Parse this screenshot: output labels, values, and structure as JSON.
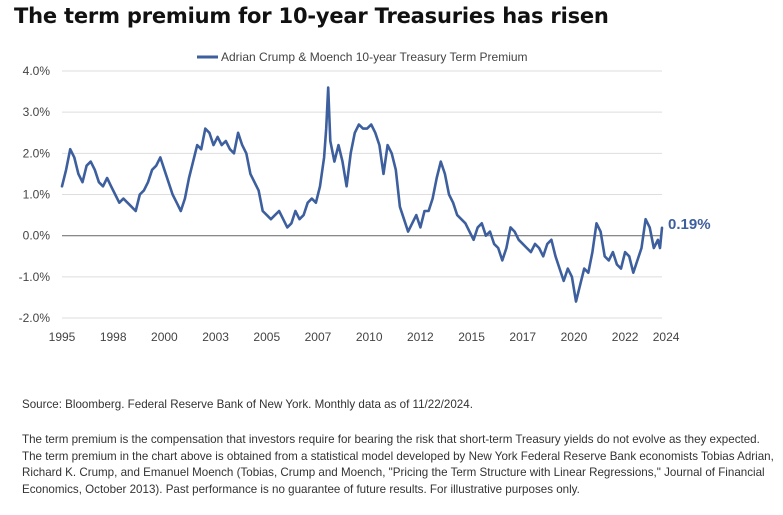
{
  "title": "The term premium for 10-year Treasuries has risen",
  "source": "Source: Bloomberg. Federal Reserve Bank of New York. Monthly data as of 11/22/2024.",
  "note": "The term premium is the compensation that investors require for bearing the risk that short-term Treasury yields do not evolve as they expected. The term premium in the chart above is obtained from a statistical model developed by New York Federal Reserve Bank economists Tobias Adrian, Richard K. Crump, and Emanuel Moench (Tobias, Crump and Moench, \"Pricing the Term Structure with Linear Regressions,\" Journal of Financial Economics, October 2013). Past performance is no guarantee of future results. For illustrative purposes only.",
  "chart_data": {
    "type": "line",
    "title": "The term premium for 10-year Treasuries has risen",
    "xlabel": "",
    "ylabel": "",
    "xlim": [
      1995,
      2024.3
    ],
    "ylim": [
      -2.0,
      4.0
    ],
    "x_ticks": [
      "1995",
      "1998",
      "2000",
      "2003",
      "2005",
      "2007",
      "2010",
      "2012",
      "2015",
      "2017",
      "2020",
      "2022",
      "2024"
    ],
    "x_tick_values": [
      1995,
      1997.5,
      2000,
      2002.5,
      2005,
      2007.5,
      2010,
      2012.5,
      2015,
      2017.5,
      2020,
      2022.5,
      2024.5
    ],
    "y_ticks": [
      "4.0%",
      "3.0%",
      "2.0%",
      "1.0%",
      "0.0%",
      "-1.0%",
      "-2.0%"
    ],
    "y_tick_values": [
      4,
      3,
      2,
      1,
      0,
      -1,
      -2
    ],
    "grid": true,
    "legend_position": "top-center",
    "color": "#3d5f9e",
    "end_label": "0.19%",
    "series": [
      {
        "name": "Adrian Crump & Moench 10-year Treasury Term Premium",
        "points": [
          [
            1995.0,
            1.2
          ],
          [
            1995.2,
            1.6
          ],
          [
            1995.4,
            2.1
          ],
          [
            1995.6,
            1.9
          ],
          [
            1995.8,
            1.5
          ],
          [
            1996.0,
            1.3
          ],
          [
            1996.2,
            1.7
          ],
          [
            1996.4,
            1.8
          ],
          [
            1996.6,
            1.6
          ],
          [
            1996.8,
            1.3
          ],
          [
            1997.0,
            1.2
          ],
          [
            1997.2,
            1.4
          ],
          [
            1997.4,
            1.2
          ],
          [
            1997.6,
            1.0
          ],
          [
            1997.8,
            0.8
          ],
          [
            1998.0,
            0.9
          ],
          [
            1998.2,
            0.8
          ],
          [
            1998.4,
            0.7
          ],
          [
            1998.6,
            0.6
          ],
          [
            1998.8,
            1.0
          ],
          [
            1999.0,
            1.1
          ],
          [
            1999.2,
            1.3
          ],
          [
            1999.4,
            1.6
          ],
          [
            1999.6,
            1.7
          ],
          [
            1999.8,
            1.9
          ],
          [
            2000.0,
            1.6
          ],
          [
            2000.2,
            1.3
          ],
          [
            2000.4,
            1.0
          ],
          [
            2000.6,
            0.8
          ],
          [
            2000.8,
            0.6
          ],
          [
            2001.0,
            0.9
          ],
          [
            2001.2,
            1.4
          ],
          [
            2001.4,
            1.8
          ],
          [
            2001.6,
            2.2
          ],
          [
            2001.8,
            2.1
          ],
          [
            2002.0,
            2.6
          ],
          [
            2002.2,
            2.5
          ],
          [
            2002.4,
            2.2
          ],
          [
            2002.6,
            2.4
          ],
          [
            2002.8,
            2.2
          ],
          [
            2003.0,
            2.3
          ],
          [
            2003.2,
            2.1
          ],
          [
            2003.4,
            2.0
          ],
          [
            2003.6,
            2.5
          ],
          [
            2003.8,
            2.2
          ],
          [
            2004.0,
            2.0
          ],
          [
            2004.2,
            1.5
          ],
          [
            2004.4,
            1.3
          ],
          [
            2004.6,
            1.1
          ],
          [
            2004.8,
            0.6
          ],
          [
            2005.0,
            0.5
          ],
          [
            2005.2,
            0.4
          ],
          [
            2005.4,
            0.5
          ],
          [
            2005.6,
            0.6
          ],
          [
            2005.8,
            0.4
          ],
          [
            2006.0,
            0.2
          ],
          [
            2006.2,
            0.3
          ],
          [
            2006.4,
            0.6
          ],
          [
            2006.6,
            0.4
          ],
          [
            2006.8,
            0.5
          ],
          [
            2007.0,
            0.8
          ],
          [
            2007.2,
            0.9
          ],
          [
            2007.4,
            0.8
          ],
          [
            2007.6,
            1.2
          ],
          [
            2007.8,
            1.9
          ],
          [
            2007.9,
            2.6
          ],
          [
            2008.0,
            3.6
          ],
          [
            2008.1,
            2.3
          ],
          [
            2008.3,
            1.8
          ],
          [
            2008.5,
            2.2
          ],
          [
            2008.7,
            1.8
          ],
          [
            2008.9,
            1.2
          ],
          [
            2009.1,
            2.0
          ],
          [
            2009.3,
            2.5
          ],
          [
            2009.5,
            2.7
          ],
          [
            2009.7,
            2.6
          ],
          [
            2009.9,
            2.6
          ],
          [
            2010.1,
            2.7
          ],
          [
            2010.3,
            2.5
          ],
          [
            2010.5,
            2.2
          ],
          [
            2010.7,
            1.5
          ],
          [
            2010.9,
            2.2
          ],
          [
            2011.1,
            2.0
          ],
          [
            2011.3,
            1.6
          ],
          [
            2011.5,
            0.7
          ],
          [
            2011.7,
            0.4
          ],
          [
            2011.9,
            0.1
          ],
          [
            2012.1,
            0.3
          ],
          [
            2012.3,
            0.5
          ],
          [
            2012.5,
            0.2
          ],
          [
            2012.7,
            0.6
          ],
          [
            2012.9,
            0.6
          ],
          [
            2013.1,
            0.9
          ],
          [
            2013.3,
            1.4
          ],
          [
            2013.5,
            1.8
          ],
          [
            2013.7,
            1.5
          ],
          [
            2013.9,
            1.0
          ],
          [
            2014.1,
            0.8
          ],
          [
            2014.3,
            0.5
          ],
          [
            2014.5,
            0.4
          ],
          [
            2014.7,
            0.3
          ],
          [
            2014.9,
            0.1
          ],
          [
            2015.1,
            -0.1
          ],
          [
            2015.3,
            0.2
          ],
          [
            2015.5,
            0.3
          ],
          [
            2015.7,
            0.0
          ],
          [
            2015.9,
            0.1
          ],
          [
            2016.1,
            -0.2
          ],
          [
            2016.3,
            -0.3
          ],
          [
            2016.5,
            -0.6
          ],
          [
            2016.7,
            -0.3
          ],
          [
            2016.9,
            0.2
          ],
          [
            2017.1,
            0.1
          ],
          [
            2017.3,
            -0.1
          ],
          [
            2017.5,
            -0.2
          ],
          [
            2017.7,
            -0.3
          ],
          [
            2017.9,
            -0.4
          ],
          [
            2018.1,
            -0.2
          ],
          [
            2018.3,
            -0.3
          ],
          [
            2018.5,
            -0.5
          ],
          [
            2018.7,
            -0.2
          ],
          [
            2018.9,
            -0.1
          ],
          [
            2019.1,
            -0.5
          ],
          [
            2019.3,
            -0.8
          ],
          [
            2019.5,
            -1.1
          ],
          [
            2019.7,
            -0.8
          ],
          [
            2019.9,
            -1.0
          ],
          [
            2020.1,
            -1.6
          ],
          [
            2020.3,
            -1.2
          ],
          [
            2020.5,
            -0.8
          ],
          [
            2020.7,
            -0.9
          ],
          [
            2020.9,
            -0.4
          ],
          [
            2021.1,
            0.3
          ],
          [
            2021.3,
            0.1
          ],
          [
            2021.5,
            -0.5
          ],
          [
            2021.7,
            -0.6
          ],
          [
            2021.9,
            -0.4
          ],
          [
            2022.1,
            -0.7
          ],
          [
            2022.3,
            -0.8
          ],
          [
            2022.5,
            -0.4
          ],
          [
            2022.7,
            -0.5
          ],
          [
            2022.9,
            -0.9
          ],
          [
            2023.1,
            -0.6
          ],
          [
            2023.3,
            -0.3
          ],
          [
            2023.5,
            0.4
          ],
          [
            2023.7,
            0.2
          ],
          [
            2023.9,
            -0.3
          ],
          [
            2024.0,
            -0.2
          ],
          [
            2024.1,
            -0.1
          ],
          [
            2024.2,
            -0.3
          ],
          [
            2024.3,
            0.19
          ]
        ]
      }
    ]
  }
}
